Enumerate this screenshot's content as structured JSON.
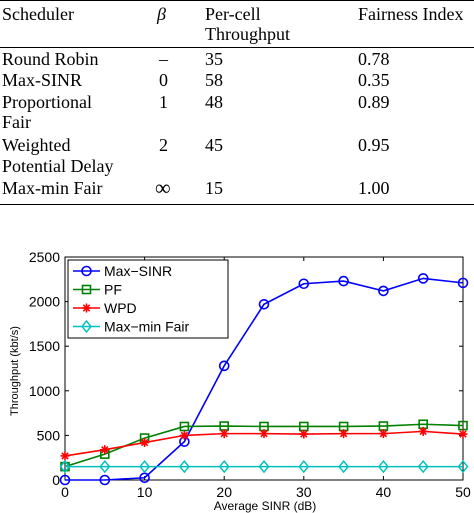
{
  "table": {
    "headers": [
      "Scheduler",
      "β",
      "Per-cell Throughput",
      "Fairness Index"
    ],
    "header_lines": {
      "col0": "Scheduler",
      "col1": "β",
      "col2_line1": "Per-cell",
      "col2_line2": "Throughput",
      "col3": "Fairness Index"
    },
    "rows": [
      {
        "scheduler_lines": [
          "Round Robin"
        ],
        "beta": "–",
        "throughput": "35",
        "fairness": "0.78"
      },
      {
        "scheduler_lines": [
          "Max-SINR"
        ],
        "beta": "0",
        "throughput": "58",
        "fairness": "0.35"
      },
      {
        "scheduler_lines": [
          "Proportional",
          "Fair"
        ],
        "beta": "1",
        "throughput": "48",
        "fairness": "0.89"
      },
      {
        "scheduler_lines": [
          "Weighted",
          "Potential Delay"
        ],
        "beta": "2",
        "throughput": "45",
        "fairness": "0.95"
      },
      {
        "scheduler_lines": [
          "Max-min Fair"
        ],
        "beta": "∞",
        "throughput": "15",
        "fairness": "1.00"
      }
    ]
  },
  "chart_data": {
    "type": "line",
    "xlabel": "Average SINR (dB)",
    "ylabel": "Throughput (kbt/s)",
    "xlim": [
      0,
      50
    ],
    "ylim": [
      0,
      2500
    ],
    "xticks": [
      "0",
      "10",
      "20",
      "30",
      "40",
      "50"
    ],
    "yticks": [
      "0",
      "500",
      "1000",
      "1500",
      "2000",
      "2500"
    ],
    "legend_position": "top-left",
    "x": [
      0,
      5,
      10,
      15,
      20,
      25,
      30,
      35,
      40,
      45,
      50
    ],
    "series": [
      {
        "name": "Max−SINR",
        "color": "#0000ff",
        "marker": "circle",
        "values": [
          0,
          0,
          25,
          430,
          1280,
          1970,
          2200,
          2230,
          2120,
          2260,
          2210
        ]
      },
      {
        "name": "PF",
        "color": "#008000",
        "marker": "square",
        "values": [
          150,
          290,
          470,
          600,
          605,
          600,
          600,
          600,
          605,
          625,
          610
        ]
      },
      {
        "name": "WPD",
        "color": "#ff0000",
        "marker": "star",
        "values": [
          270,
          340,
          420,
          500,
          520,
          520,
          515,
          520,
          520,
          545,
          515
        ]
      },
      {
        "name": "Max−min Fair",
        "color": "#00bfbf",
        "marker": "diamond",
        "values": [
          150,
          150,
          150,
          150,
          150,
          150,
          150,
          150,
          150,
          150,
          150
        ]
      }
    ]
  }
}
